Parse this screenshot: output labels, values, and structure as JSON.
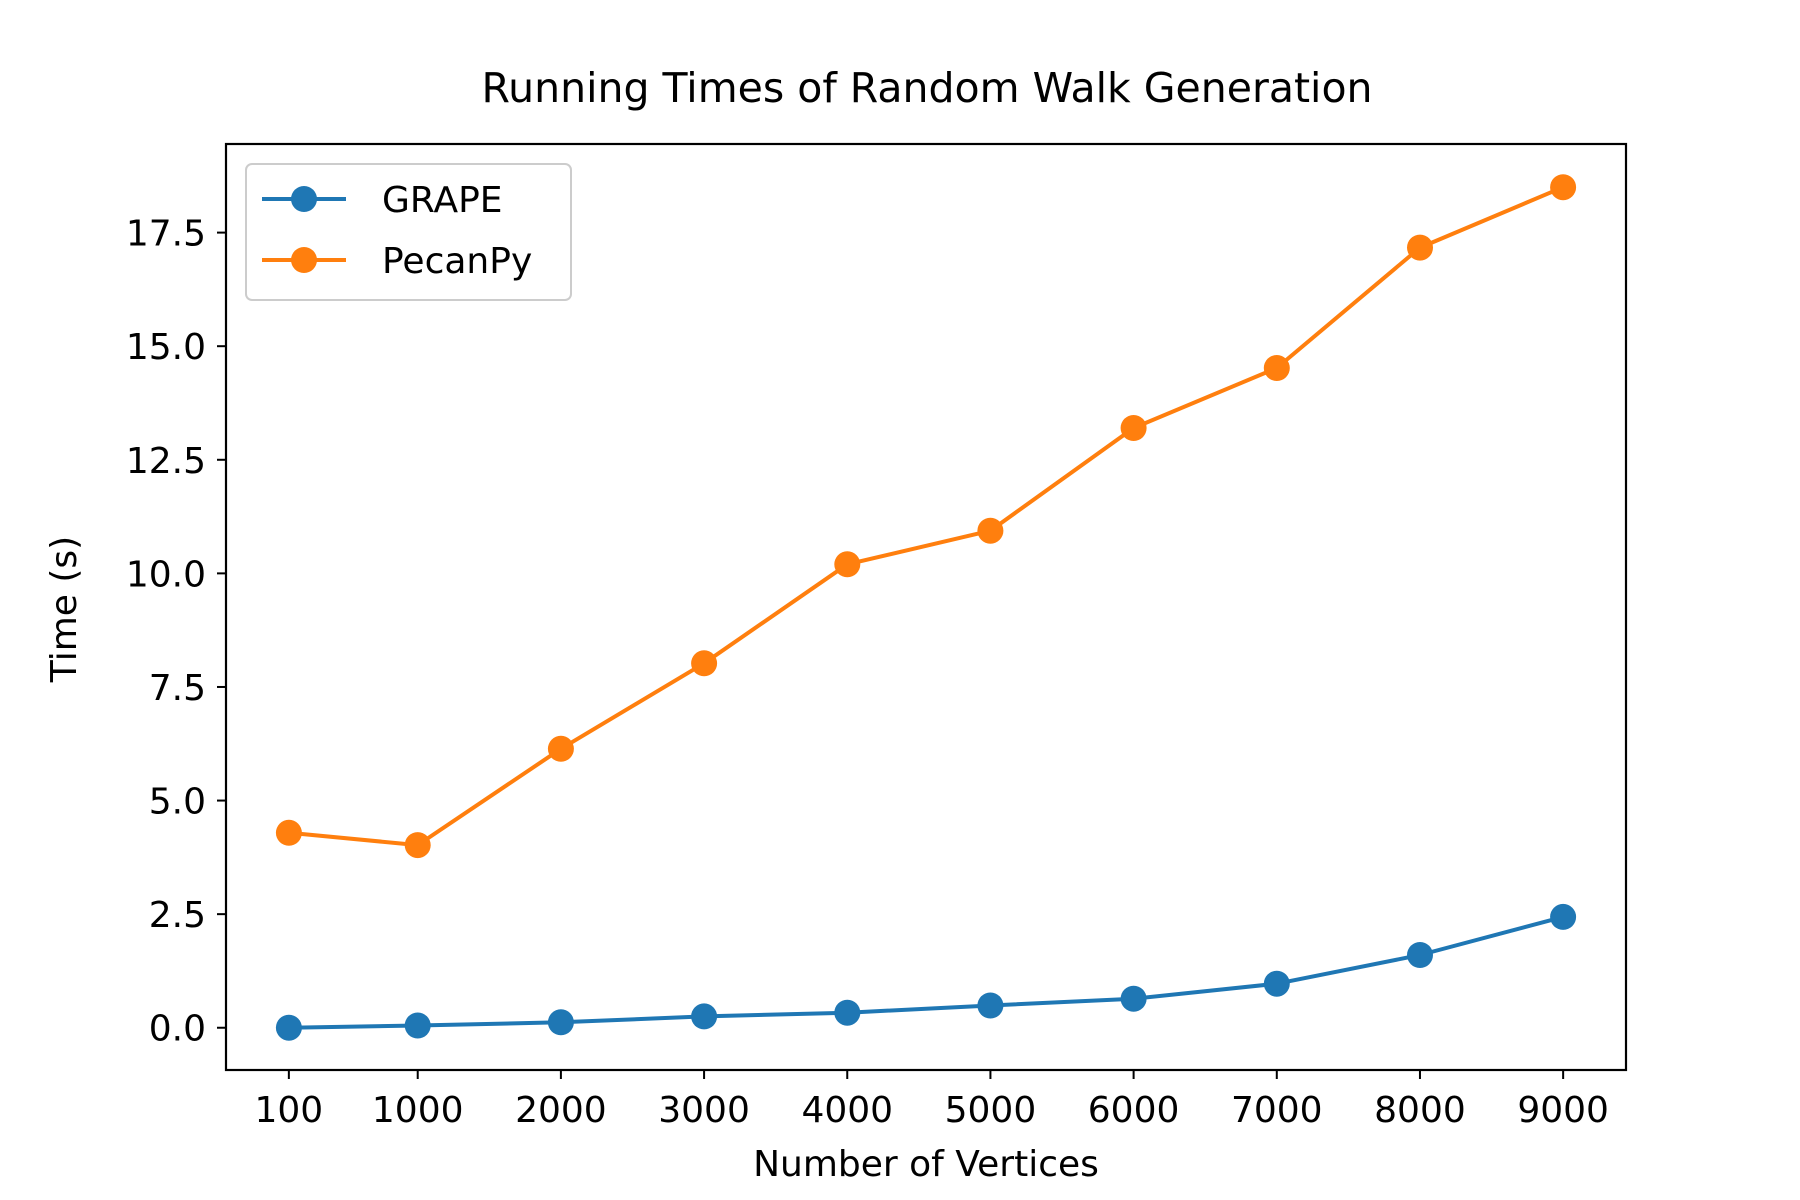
{
  "chart_data": {
    "type": "line",
    "title": "Running Times of Random Walk Generation",
    "xlabel": "Number of Vertices",
    "ylabel": "Time (s)",
    "categories": [
      "100",
      "1000",
      "2000",
      "3000",
      "4000",
      "5000",
      "6000",
      "7000",
      "8000",
      "9000"
    ],
    "x": [
      100,
      1000,
      2000,
      3000,
      4000,
      5000,
      6000,
      7000,
      8000,
      9000
    ],
    "xlim": [
      -339,
      9439
    ],
    "ylim": [
      -0.93,
      19.45
    ],
    "yticks": [
      0.0,
      2.5,
      5.0,
      7.5,
      10.0,
      12.5,
      15.0,
      17.5
    ],
    "ytick_labels": [
      "0.0",
      "2.5",
      "5.0",
      "7.5",
      "10.0",
      "12.5",
      "15.0",
      "17.5"
    ],
    "grid": false,
    "legend_position": "top-left",
    "series": [
      {
        "name": "GRAPE",
        "color": "#1f77b4",
        "marker": "circle",
        "values": [
          0.0,
          0.05,
          0.12,
          0.25,
          0.33,
          0.49,
          0.64,
          0.97,
          1.6,
          2.44
        ]
      },
      {
        "name": "PecanPy",
        "color": "#ff7f0e",
        "marker": "circle",
        "values": [
          4.29,
          4.02,
          6.14,
          8.02,
          10.2,
          10.94,
          13.2,
          14.52,
          17.17,
          18.5
        ]
      }
    ]
  }
}
